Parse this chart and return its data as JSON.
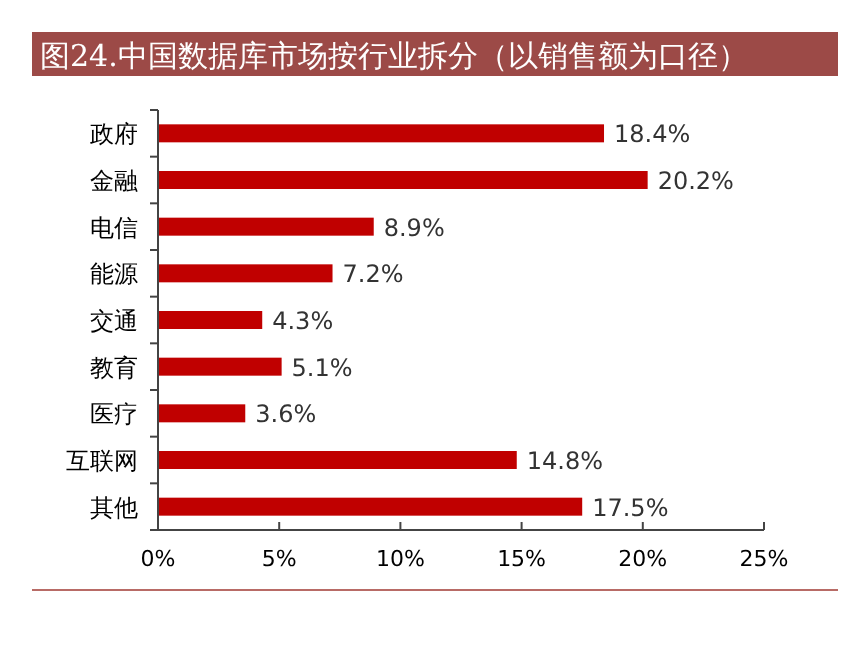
{
  "chart_data": {
    "type": "bar",
    "orientation": "horizontal",
    "title": "图24.中国数据库市场按行业拆分（以销售额为口径）",
    "categories": [
      "政府",
      "金融",
      "电信",
      "能源",
      "交通",
      "教育",
      "医疗",
      "互联网",
      "其他"
    ],
    "values": [
      18.4,
      20.2,
      8.9,
      7.2,
      4.3,
      5.1,
      3.6,
      14.8,
      17.5
    ],
    "value_labels": [
      "18.4%",
      "20.2%",
      "8.9%",
      "7.2%",
      "4.3%",
      "5.1%",
      "3.6%",
      "14.8%",
      "17.5%"
    ],
    "color": "#c00000",
    "xlim": [
      0,
      25
    ],
    "xticks": [
      {
        "value": 0,
        "label": "0%"
      },
      {
        "value": 5,
        "label": "5%"
      },
      {
        "value": 10,
        "label": "10%"
      },
      {
        "value": 15,
        "label": "15%"
      },
      {
        "value": 20,
        "label": "20%"
      },
      {
        "value": 25,
        "label": "25%"
      }
    ],
    "grid": false
  }
}
